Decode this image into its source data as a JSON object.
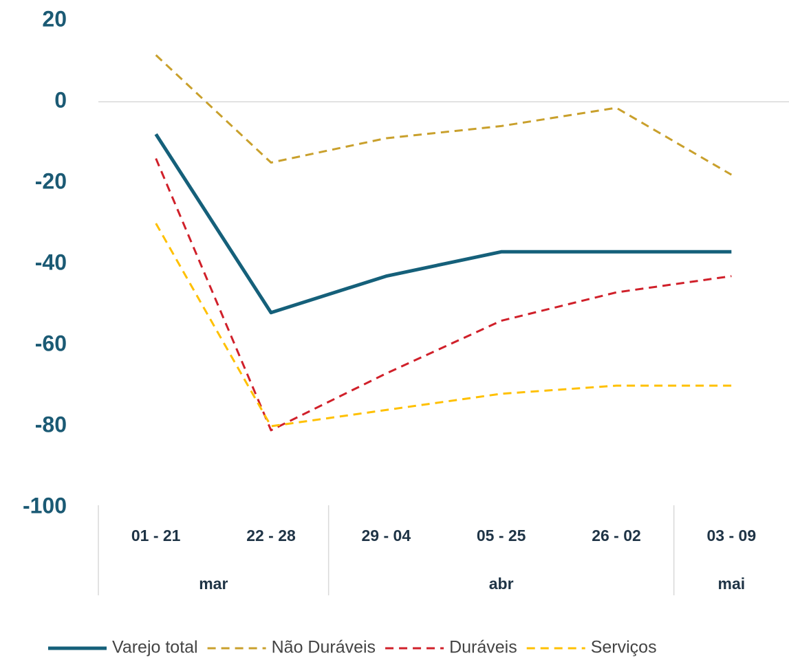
{
  "chart_data": {
    "type": "line",
    "categories": [
      "01 - 21",
      "22 - 28",
      "29 - 04",
      "05 - 25",
      "26 - 02",
      "03 - 09"
    ],
    "groups": [
      {
        "label": "mar",
        "size": 2
      },
      {
        "label": "abr",
        "size": 3
      },
      {
        "label": "mai",
        "size": 1
      }
    ],
    "series": [
      {
        "name": "Varejo total",
        "color": "#15607a",
        "dash": false,
        "values": [
          -8,
          -52,
          -43,
          -37,
          -37,
          -37
        ]
      },
      {
        "name": "Não Duráveis",
        "color": "#c9a02c",
        "dash": true,
        "values": [
          11.5,
          -15,
          -9,
          -6,
          -1.5,
          -18
        ]
      },
      {
        "name": "Duráveis",
        "color": "#d0202a",
        "dash": true,
        "values": [
          -14,
          -81,
          -67,
          -54,
          -47,
          -43
        ]
      },
      {
        "name": "Serviços",
        "color": "#ffc000",
        "dash": true,
        "values": [
          -30,
          -80,
          -76,
          -72,
          -70,
          -70
        ]
      }
    ],
    "ylim": [
      -100,
      20
    ],
    "yticks": [
      -100,
      -80,
      -60,
      -40,
      -20,
      0,
      20
    ],
    "zero_line": true,
    "legend": "bottom"
  }
}
